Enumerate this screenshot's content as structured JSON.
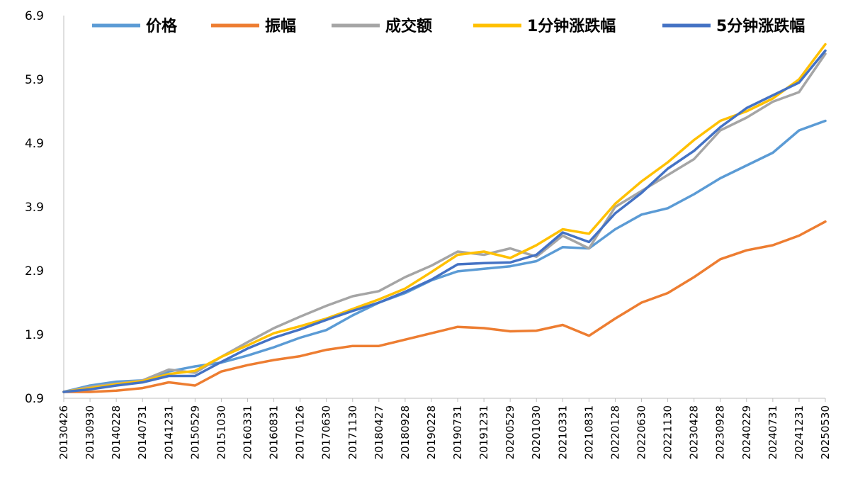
{
  "chart_data": {
    "type": "line",
    "title": "",
    "xlabel": "",
    "ylabel": "",
    "ylim": [
      0.9,
      6.9
    ],
    "yticks": [
      "0.9",
      "1.9",
      "2.9",
      "3.9",
      "4.9",
      "5.9",
      "6.9"
    ],
    "ytick_values": [
      0.9,
      1.9,
      2.9,
      3.9,
      4.9,
      5.9,
      6.9
    ],
    "xticks": [
      "20130426",
      "20130930",
      "20140228",
      "20140731",
      "20141231",
      "20150529",
      "20151030",
      "20160331",
      "20160831",
      "20170126",
      "20170630",
      "20171130",
      "20180427",
      "20180928",
      "20190228",
      "20190731",
      "20191231",
      "20200529",
      "20201030",
      "20210331",
      "20210831",
      "20220128",
      "20220630",
      "20221130",
      "20230428",
      "20230928",
      "20240229",
      "20240731",
      "20241231",
      "20250530"
    ],
    "legend_position": "top",
    "grid": false,
    "colors": {
      "price": "#5B9BD5",
      "amplitude": "#ED7D31",
      "turnover": "#A5A5A5",
      "min1": "#FFC000",
      "min5": "#4472C4"
    },
    "series": [
      {
        "name": "价格",
        "color": "#5B9BD5",
        "values": [
          1.0,
          1.1,
          1.16,
          1.18,
          1.32,
          1.4,
          1.46,
          1.57,
          1.7,
          1.85,
          1.97,
          2.2,
          2.4,
          2.55,
          2.75,
          2.89,
          2.93,
          2.97,
          3.05,
          3.27,
          3.25,
          3.55,
          3.78,
          3.88,
          4.1,
          4.35,
          4.55,
          4.75,
          5.1,
          5.25
        ]
      },
      {
        "name": "振幅",
        "color": "#ED7D31",
        "values": [
          1.0,
          1.0,
          1.02,
          1.06,
          1.15,
          1.1,
          1.32,
          1.42,
          1.5,
          1.56,
          1.66,
          1.72,
          1.72,
          1.82,
          1.92,
          2.02,
          2.0,
          1.95,
          1.96,
          2.05,
          1.88,
          2.15,
          2.4,
          2.55,
          2.8,
          3.08,
          3.22,
          3.3,
          3.45,
          3.67
        ]
      },
      {
        "name": "成交额",
        "color": "#A5A5A5",
        "values": [
          1.0,
          1.08,
          1.13,
          1.18,
          1.35,
          1.3,
          1.55,
          1.78,
          2.0,
          2.18,
          2.35,
          2.5,
          2.58,
          2.8,
          2.98,
          3.2,
          3.15,
          3.25,
          3.12,
          3.45,
          3.25,
          3.9,
          4.15,
          4.4,
          4.65,
          5.1,
          5.3,
          5.55,
          5.7,
          6.3
        ]
      },
      {
        "name": "1分钟涨跌幅",
        "color": "#FFC000",
        "values": [
          1.0,
          1.06,
          1.12,
          1.17,
          1.28,
          1.33,
          1.55,
          1.73,
          1.92,
          2.03,
          2.15,
          2.3,
          2.45,
          2.62,
          2.88,
          3.15,
          3.2,
          3.1,
          3.3,
          3.55,
          3.48,
          3.95,
          4.3,
          4.6,
          4.95,
          5.25,
          5.4,
          5.6,
          5.9,
          6.45
        ]
      },
      {
        "name": "5分钟涨跌幅",
        "color": "#4472C4",
        "values": [
          1.0,
          1.04,
          1.1,
          1.15,
          1.25,
          1.25,
          1.47,
          1.68,
          1.85,
          1.98,
          2.13,
          2.27,
          2.4,
          2.57,
          2.76,
          3.0,
          3.02,
          3.03,
          3.15,
          3.5,
          3.35,
          3.8,
          4.12,
          4.5,
          4.78,
          5.15,
          5.45,
          5.65,
          5.85,
          6.35
        ]
      }
    ]
  }
}
